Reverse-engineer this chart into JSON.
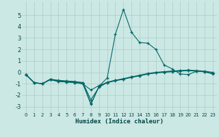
{
  "xlabel": "Humidex (Indice chaleur)",
  "background_color": "#cce8e4",
  "grid_color": "#b0d0cc",
  "line_color": "#006666",
  "xlim": [
    -0.5,
    23.5
  ],
  "ylim": [
    -3.5,
    6.2
  ],
  "yticks": [
    -3,
    -2,
    -1,
    0,
    1,
    2,
    3,
    4,
    5
  ],
  "xticks": [
    0,
    1,
    2,
    3,
    4,
    5,
    6,
    7,
    8,
    9,
    10,
    11,
    12,
    13,
    14,
    15,
    16,
    17,
    18,
    19,
    20,
    21,
    22,
    23
  ],
  "series": [
    {
      "x": [
        0,
        1,
        2,
        3,
        4,
        5,
        6,
        7,
        8,
        9,
        10,
        11,
        12,
        13,
        14,
        15,
        16,
        17,
        18,
        19,
        20,
        21,
        22,
        23
      ],
      "y": [
        -0.2,
        -0.9,
        -1.0,
        -0.6,
        -0.75,
        -0.8,
        -0.85,
        -0.9,
        -2.75,
        -1.25,
        -0.85,
        -0.7,
        -0.55,
        -0.4,
        -0.3,
        -0.15,
        -0.05,
        0.05,
        0.1,
        0.15,
        0.15,
        0.1,
        0.05,
        -0.1
      ]
    },
    {
      "x": [
        0,
        1,
        2,
        3,
        4,
        5,
        6,
        7,
        8,
        9,
        10,
        11,
        12,
        13,
        14,
        15,
        16,
        17,
        18,
        19,
        20,
        21,
        22,
        23
      ],
      "y": [
        -0.2,
        -0.9,
        -1.0,
        -0.65,
        -0.8,
        -0.85,
        -0.9,
        -1.0,
        -1.55,
        -1.15,
        -0.9,
        -0.7,
        -0.6,
        -0.45,
        -0.3,
        -0.15,
        -0.05,
        0.0,
        0.05,
        0.1,
        0.15,
        0.1,
        0.05,
        -0.1
      ]
    },
    {
      "x": [
        0,
        1,
        2,
        3,
        4,
        5,
        6,
        7,
        8,
        9,
        10,
        11,
        12,
        13,
        14,
        15,
        16,
        17,
        18,
        19,
        20,
        21,
        22,
        23
      ],
      "y": [
        -0.2,
        -0.9,
        -1.0,
        -0.6,
        -0.7,
        -0.75,
        -0.8,
        -0.9,
        -2.4,
        -1.3,
        -0.9,
        -0.75,
        -0.6,
        -0.4,
        -0.25,
        -0.1,
        0.0,
        0.05,
        0.1,
        0.15,
        0.2,
        0.15,
        0.1,
        0.0
      ]
    },
    {
      "x": [
        0,
        1,
        2,
        3,
        4,
        5,
        6,
        7,
        8,
        9,
        10,
        11,
        12,
        13,
        14,
        15,
        16,
        17,
        18,
        19,
        20,
        21,
        22,
        23
      ],
      "y": [
        -0.2,
        -0.9,
        -1.0,
        -0.65,
        -0.8,
        -0.85,
        -0.9,
        -1.0,
        -2.8,
        -1.2,
        -0.5,
        3.3,
        5.5,
        3.5,
        2.6,
        2.55,
        2.0,
        0.65,
        0.3,
        -0.15,
        -0.2,
        0.1,
        0.05,
        -0.15
      ]
    }
  ]
}
